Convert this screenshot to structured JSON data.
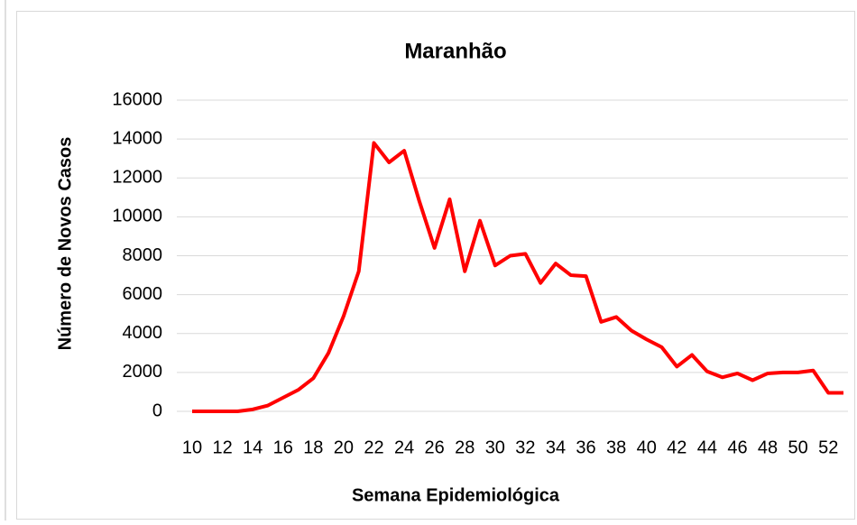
{
  "chart_data": {
    "type": "line",
    "title": "Maranhão",
    "x_label": "Semana Epidemiológica",
    "y_label": "Número de Novos Casos",
    "x": [
      10,
      11,
      12,
      13,
      14,
      15,
      16,
      17,
      18,
      19,
      20,
      21,
      22,
      23,
      24,
      25,
      26,
      27,
      28,
      29,
      30,
      31,
      32,
      33,
      34,
      35,
      36,
      37,
      38,
      39,
      40,
      41,
      42,
      43,
      44,
      45,
      46,
      47,
      48,
      49,
      50,
      51,
      52,
      53
    ],
    "series": [
      {
        "name": "Maranhão",
        "color": "#ff0000",
        "values": [
          0,
          0,
          0,
          0,
          100,
          300,
          700,
          1100,
          1700,
          3000,
          4900,
          7200,
          13800,
          12800,
          13400,
          10800,
          8400,
          10900,
          7200,
          9800,
          7500,
          8000,
          8100,
          6600,
          7600,
          7000,
          6950,
          4600,
          4850,
          4150,
          3700,
          3300,
          2300,
          2900,
          2050,
          1750,
          1950,
          1600,
          1950,
          2000,
          2000,
          2100,
          950,
          950
        ]
      }
    ],
    "xlim": [
      10,
      53
    ],
    "xticks": [
      10,
      12,
      14,
      16,
      18,
      20,
      22,
      24,
      26,
      28,
      30,
      32,
      34,
      36,
      38,
      40,
      42,
      44,
      46,
      48,
      50,
      52
    ],
    "ylim": [
      0,
      16000
    ],
    "yticks": [
      0,
      2000,
      4000,
      6000,
      8000,
      10000,
      12000,
      14000,
      16000
    ],
    "grid": true
  }
}
